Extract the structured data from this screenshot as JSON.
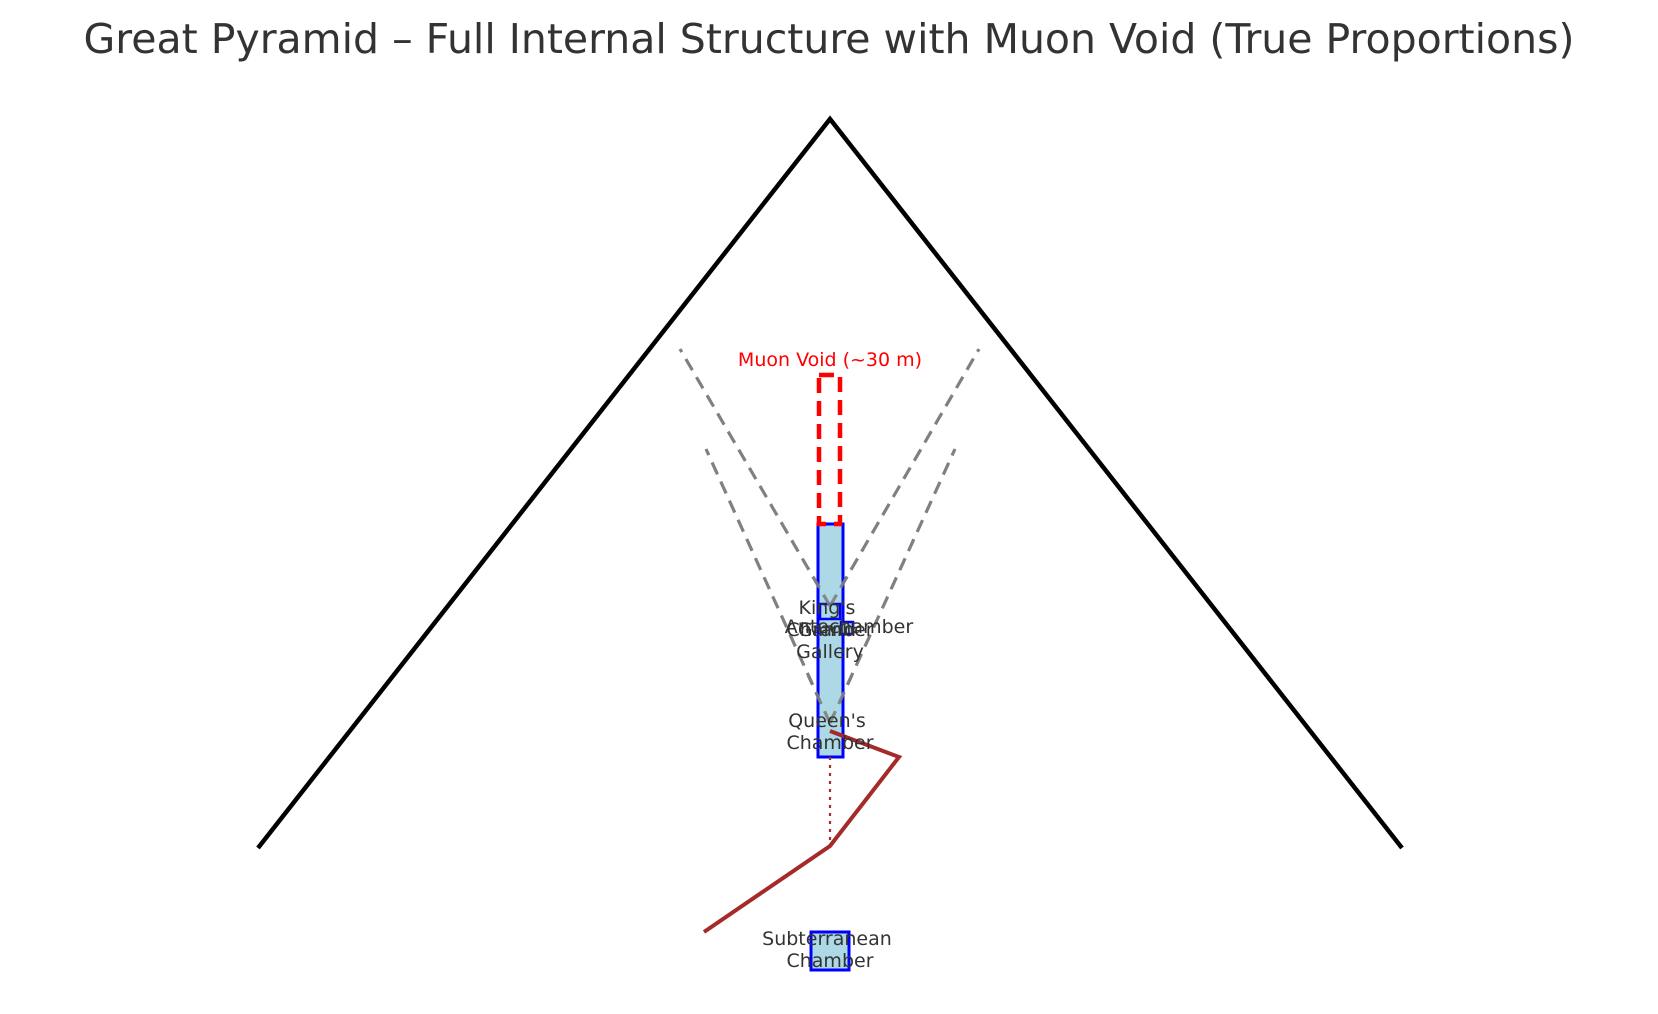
{
  "title": "Great Pyramid – Full Internal Structure with Muon Void (True Proportions)",
  "labels": {
    "muon_void": "Muon Void (~30 m)",
    "kings_chamber": [
      "King's",
      "Chamber"
    ],
    "antechamber": "Antechamber",
    "grand_gallery": [
      "Grand",
      "Gallery"
    ],
    "queens_chamber": [
      "Queen's",
      "Chamber"
    ],
    "subterranean_chamber": [
      "Subterranean",
      "Chamber"
    ]
  },
  "colors": {
    "pyramid_outline": "#000000",
    "chamber_fill": "#add8e6",
    "chamber_edge": "#0000ff",
    "void": "#ff0000",
    "passage": "#a52a2a",
    "shaft": "#808080",
    "text": "#333333"
  }
}
